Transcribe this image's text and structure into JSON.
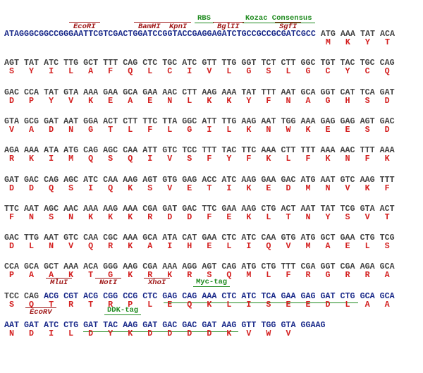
{
  "annotations": [
    "RBS",
    "Kozac Consensus",
    "EcoRI",
    "BamHI",
    "KpnI",
    "BglII",
    "SgfI",
    "MluI",
    "NotI",
    "XhoI",
    "Myc-tag",
    "EcoRV",
    "DDK-tag"
  ],
  "lines": [
    {
      "prefix": "ATAGGGCGGCCGGGAATTCGTCGACTGGATCCGGTACCGAGGAGATCTGCCGCCGCGATCGCC",
      "codons": [
        "ATG",
        "AAA",
        "TAT",
        "ACA"
      ],
      "protein": [
        "M",
        "K",
        "Y",
        "T"
      ]
    },
    {
      "codons": [
        "AGT",
        "TAT",
        "ATC",
        "TTG",
        "GCT",
        "TTT",
        "CAG",
        "CTC",
        "TGC",
        "ATC",
        "GTT",
        "TTG",
        "GGT",
        "TCT",
        "CTT",
        "GGC",
        "TGT",
        "TAC",
        "TGC",
        "CAG"
      ],
      "protein": [
        "S",
        "Y",
        "I",
        "L",
        "A",
        "F",
        "Q",
        "L",
        "C",
        "I",
        "V",
        "L",
        "G",
        "S",
        "L",
        "G",
        "C",
        "Y",
        "C",
        "Q"
      ]
    },
    {
      "codons": [
        "GAC",
        "CCA",
        "TAT",
        "GTA",
        "AAA",
        "GAA",
        "GCA",
        "GAA",
        "AAC",
        "CTT",
        "AAG",
        "AAA",
        "TAT",
        "TTT",
        "AAT",
        "GCA",
        "GGT",
        "CAT",
        "TCA",
        "GAT"
      ],
      "protein": [
        "D",
        "P",
        "Y",
        "V",
        "K",
        "E",
        "A",
        "E",
        "N",
        "L",
        "K",
        "K",
        "Y",
        "F",
        "N",
        "A",
        "G",
        "H",
        "S",
        "D"
      ]
    },
    {
      "codons": [
        "GTA",
        "GCG",
        "GAT",
        "AAT",
        "GGA",
        "ACT",
        "CTT",
        "TTC",
        "TTA",
        "GGC",
        "ATT",
        "TTG",
        "AAG",
        "AAT",
        "TGG",
        "AAA",
        "GAG",
        "GAG",
        "AGT",
        "GAC"
      ],
      "protein": [
        "V",
        "A",
        "D",
        "N",
        "G",
        "T",
        "L",
        "F",
        "L",
        "G",
        "I",
        "L",
        "K",
        "N",
        "W",
        "K",
        "E",
        "E",
        "S",
        "D"
      ]
    },
    {
      "codons": [
        "AGA",
        "AAA",
        "ATA",
        "ATG",
        "CAG",
        "AGC",
        "CAA",
        "ATT",
        "GTC",
        "TCC",
        "TTT",
        "TAC",
        "TTC",
        "AAA",
        "CTT",
        "TTT",
        "AAA",
        "AAC",
        "TTT",
        "AAA"
      ],
      "protein": [
        "R",
        "K",
        "I",
        "M",
        "Q",
        "S",
        "Q",
        "I",
        "V",
        "S",
        "F",
        "Y",
        "F",
        "K",
        "L",
        "F",
        "K",
        "N",
        "F",
        "K"
      ]
    },
    {
      "codons": [
        "GAT",
        "GAC",
        "CAG",
        "AGC",
        "ATC",
        "CAA",
        "AAG",
        "AGT",
        "GTG",
        "GAG",
        "ACC",
        "ATC",
        "AAG",
        "GAA",
        "GAC",
        "ATG",
        "AAT",
        "GTC",
        "AAG",
        "TTT"
      ],
      "protein": [
        "D",
        "D",
        "Q",
        "S",
        "I",
        "Q",
        "K",
        "S",
        "V",
        "E",
        "T",
        "I",
        "K",
        "E",
        "D",
        "M",
        "N",
        "V",
        "K",
        "F"
      ]
    },
    {
      "codons": [
        "TTC",
        "AAT",
        "AGC",
        "AAC",
        "AAA",
        "AAG",
        "AAA",
        "CGA",
        "GAT",
        "GAC",
        "TTC",
        "GAA",
        "AAG",
        "CTG",
        "ACT",
        "AAT",
        "TAT",
        "TCG",
        "GTA",
        "ACT"
      ],
      "protein": [
        "F",
        "N",
        "S",
        "N",
        "K",
        "K",
        "K",
        "R",
        "D",
        "D",
        "F",
        "E",
        "K",
        "L",
        "T",
        "N",
        "Y",
        "S",
        "V",
        "T"
      ]
    },
    {
      "codons": [
        "GAC",
        "TTG",
        "AAT",
        "GTC",
        "CAA",
        "CGC",
        "AAA",
        "GCA",
        "ATA",
        "CAT",
        "GAA",
        "CTC",
        "ATC",
        "CAA",
        "GTG",
        "ATG",
        "GCT",
        "GAA",
        "CTG",
        "TCG"
      ],
      "protein": [
        "D",
        "L",
        "N",
        "V",
        "Q",
        "R",
        "K",
        "A",
        "I",
        "H",
        "E",
        "L",
        "I",
        "Q",
        "V",
        "M",
        "A",
        "E",
        "L",
        "S"
      ]
    },
    {
      "codons": [
        "CCA",
        "GCA",
        "GCT",
        "AAA",
        "ACA",
        "GGG",
        "AAG",
        "CGA",
        "AAA",
        "AGG",
        "AGT",
        "CAG",
        "ATG",
        "CTG",
        "TTT",
        "CGA",
        "GGT",
        "CGA",
        "AGA",
        "GCA"
      ],
      "protein": [
        "P",
        "A",
        "A",
        "K",
        "T",
        "G",
        "K",
        "R",
        "K",
        "R",
        "S",
        "Q",
        "M",
        "L",
        "F",
        "R",
        "G",
        "R",
        "R",
        "A"
      ]
    },
    {
      "codons": [
        "TCC",
        "CAG",
        "ACG",
        "CGT",
        "ACG",
        "CGG",
        "CCG",
        "CTC",
        "GAG",
        "CAG",
        "AAA",
        "CTC",
        "ATC",
        "TCA",
        "GAA",
        "GAG",
        "GAT",
        "CTG",
        "GCA",
        "GCA"
      ],
      "protein": [
        "S",
        "Q",
        "T",
        "R",
        "T",
        "R",
        "P",
        "L",
        "E",
        "Q",
        "K",
        "L",
        "I",
        "S",
        "E",
        "E",
        "D",
        "L",
        "A",
        "A"
      ]
    },
    {
      "codons": [
        "AAT",
        "GAT",
        "ATC",
        "CTG",
        "GAT",
        "TAC",
        "AAG",
        "GAT",
        "GAC",
        "GAC",
        "GAT",
        "AAG",
        "GTT",
        "TGG",
        "GTA",
        "GGAAG"
      ],
      "protein": [
        "N",
        "D",
        "I",
        "L",
        "D",
        "Y",
        "K",
        "D",
        "D",
        "D",
        "D",
        "K",
        "V",
        "W",
        "V"
      ]
    }
  ]
}
